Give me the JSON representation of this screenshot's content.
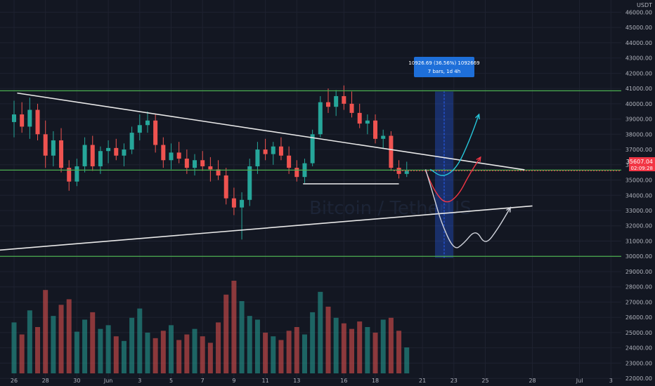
{
  "chart_data": {
    "type": "candlestick",
    "currency": "USDT",
    "watermark_pair": "Bitcoin / TetherUS",
    "ylim": [
      21500,
      46800
    ],
    "y_ticks": [
      22000,
      23000,
      24000,
      25000,
      26000,
      27000,
      28000,
      29000,
      30000,
      31000,
      32000,
      33000,
      34000,
      35000,
      36000,
      37000,
      38000,
      39000,
      40000,
      41000,
      42000,
      43000,
      44000,
      45000,
      46000
    ],
    "x_ticks": [
      {
        "label": "26",
        "day": 0
      },
      {
        "label": "28",
        "day": 2
      },
      {
        "label": "30",
        "day": 4
      },
      {
        "label": "Jun",
        "day": 6
      },
      {
        "label": "3",
        "day": 8
      },
      {
        "label": "5",
        "day": 10
      },
      {
        "label": "7",
        "day": 12
      },
      {
        "label": "9",
        "day": 14
      },
      {
        "label": "11",
        "day": 16
      },
      {
        "label": "13",
        "day": 18
      },
      {
        "label": "16",
        "day": 21
      },
      {
        "label": "18",
        "day": 23
      },
      {
        "label": "21",
        "day": 26
      },
      {
        "label": "23",
        "day": 28
      },
      {
        "label": "25",
        "day": 30
      },
      {
        "label": "28",
        "day": 33
      },
      {
        "label": "Jul",
        "day": 36
      },
      {
        "label": "3",
        "day": 38
      }
    ],
    "current_price": {
      "value": 35607.04,
      "label": "35607.04",
      "countdown": "02:09:28"
    },
    "measure_tool": {
      "line1": "10926.69 (36.56%) 1092669",
      "line2": "7 bars, 1d 4h",
      "from_price": 29900,
      "to_price": 40800
    },
    "horizontal_levels": [
      40850,
      35650,
      30000
    ],
    "support_segment": {
      "price": 34750,
      "day_from": 18.4,
      "day_to": 24.5
    },
    "trendlines": [
      {
        "name": "descending-resistance",
        "from": {
          "day": 0.2,
          "price": 40700
        },
        "to": {
          "day": 32.5,
          "price": 35670
        }
      },
      {
        "name": "ascending-support",
        "from": {
          "day": -1,
          "price": 30400
        },
        "to": {
          "day": 33,
          "price": 33300
        }
      }
    ],
    "scenario_paths": [
      {
        "name": "cyan",
        "points": [
          [
            26.5,
            35700
          ],
          [
            27.3,
            35150
          ],
          [
            28.2,
            35800
          ],
          [
            29,
            37600
          ],
          [
            29.6,
            39300
          ]
        ]
      },
      {
        "name": "red",
        "points": [
          [
            26.2,
            35600
          ],
          [
            26.8,
            34200
          ],
          [
            27.5,
            33400
          ],
          [
            28.3,
            34000
          ],
          [
            29,
            35400
          ],
          [
            29.7,
            36500
          ]
        ]
      },
      {
        "name": "white",
        "points": [
          [
            26.2,
            35700
          ],
          [
            26.7,
            34000
          ],
          [
            27.2,
            32200
          ],
          [
            28,
            30400
          ],
          [
            28.6,
            30800
          ],
          [
            29.4,
            31800
          ],
          [
            30,
            30700
          ],
          [
            30.8,
            31800
          ],
          [
            31.6,
            33200
          ]
        ]
      }
    ],
    "ohlc": [
      {
        "day": 0,
        "o": 38800,
        "h": 40200,
        "l": 37800,
        "c": 39300
      },
      {
        "day": 0.5,
        "o": 39300,
        "h": 40100,
        "l": 38100,
        "c": 38500
      },
      {
        "day": 1,
        "o": 38500,
        "h": 40400,
        "l": 37700,
        "c": 39600
      },
      {
        "day": 1.5,
        "o": 39600,
        "h": 40000,
        "l": 37600,
        "c": 38000
      },
      {
        "day": 2,
        "o": 38000,
        "h": 38900,
        "l": 35800,
        "c": 36600
      },
      {
        "day": 2.5,
        "o": 36600,
        "h": 38200,
        "l": 35900,
        "c": 37600
      },
      {
        "day": 3,
        "o": 37600,
        "h": 38400,
        "l": 35500,
        "c": 35800
      },
      {
        "day": 3.5,
        "o": 35800,
        "h": 36300,
        "l": 34300,
        "c": 34900
      },
      {
        "day": 4,
        "o": 34900,
        "h": 36400,
        "l": 34600,
        "c": 35900
      },
      {
        "day": 4.5,
        "o": 35900,
        "h": 37800,
        "l": 35500,
        "c": 37300
      },
      {
        "day": 5,
        "o": 37300,
        "h": 37900,
        "l": 35600,
        "c": 35900
      },
      {
        "day": 5.5,
        "o": 35900,
        "h": 37200,
        "l": 35400,
        "c": 36900
      },
      {
        "day": 6,
        "o": 36900,
        "h": 37600,
        "l": 36100,
        "c": 37100
      },
      {
        "day": 6.5,
        "o": 37100,
        "h": 37700,
        "l": 36300,
        "c": 36600
      },
      {
        "day": 7,
        "o": 36600,
        "h": 37400,
        "l": 35900,
        "c": 37000
      },
      {
        "day": 7.5,
        "o": 37000,
        "h": 38500,
        "l": 36700,
        "c": 38100
      },
      {
        "day": 8,
        "o": 38100,
        "h": 39300,
        "l": 37600,
        "c": 38600
      },
      {
        "day": 8.5,
        "o": 38600,
        "h": 39500,
        "l": 38100,
        "c": 38900
      },
      {
        "day": 9,
        "o": 38900,
        "h": 39300,
        "l": 36800,
        "c": 37300
      },
      {
        "day": 9.5,
        "o": 37300,
        "h": 37800,
        "l": 35800,
        "c": 36300
      },
      {
        "day": 10,
        "o": 36300,
        "h": 37400,
        "l": 35700,
        "c": 36800
      },
      {
        "day": 10.5,
        "o": 36800,
        "h": 37500,
        "l": 36100,
        "c": 36400
      },
      {
        "day": 11,
        "o": 36400,
        "h": 37000,
        "l": 35400,
        "c": 35800
      },
      {
        "day": 11.5,
        "o": 35800,
        "h": 36700,
        "l": 35300,
        "c": 36300
      },
      {
        "day": 12,
        "o": 36300,
        "h": 36900,
        "l": 35600,
        "c": 35900
      },
      {
        "day": 12.5,
        "o": 35900,
        "h": 36500,
        "l": 34900,
        "c": 35700
      },
      {
        "day": 13,
        "o": 35700,
        "h": 36300,
        "l": 35000,
        "c": 35300
      },
      {
        "day": 13.5,
        "o": 35300,
        "h": 35800,
        "l": 33400,
        "c": 33800
      },
      {
        "day": 14,
        "o": 33800,
        "h": 34500,
        "l": 32700,
        "c": 33200
      },
      {
        "day": 14.5,
        "o": 33200,
        "h": 34200,
        "l": 31100,
        "c": 33700
      },
      {
        "day": 15,
        "o": 33700,
        "h": 36400,
        "l": 33300,
        "c": 35900
      },
      {
        "day": 15.5,
        "o": 35900,
        "h": 37500,
        "l": 35400,
        "c": 37000
      },
      {
        "day": 16,
        "o": 37000,
        "h": 37700,
        "l": 36300,
        "c": 36700
      },
      {
        "day": 16.5,
        "o": 36700,
        "h": 37500,
        "l": 36000,
        "c": 37200
      },
      {
        "day": 17,
        "o": 37200,
        "h": 37800,
        "l": 36300,
        "c": 36600
      },
      {
        "day": 17.5,
        "o": 36600,
        "h": 37200,
        "l": 35400,
        "c": 35800
      },
      {
        "day": 18,
        "o": 35800,
        "h": 36300,
        "l": 34900,
        "c": 35200
      },
      {
        "day": 18.5,
        "o": 35200,
        "h": 36400,
        "l": 34800,
        "c": 36100
      },
      {
        "day": 19,
        "o": 36100,
        "h": 38300,
        "l": 35900,
        "c": 38000
      },
      {
        "day": 19.5,
        "o": 38000,
        "h": 40500,
        "l": 37800,
        "c": 40100
      },
      {
        "day": 20,
        "o": 40100,
        "h": 41000,
        "l": 39400,
        "c": 39800
      },
      {
        "day": 20.5,
        "o": 39800,
        "h": 40900,
        "l": 39200,
        "c": 40500
      },
      {
        "day": 21,
        "o": 40500,
        "h": 41200,
        "l": 39600,
        "c": 40000
      },
      {
        "day": 21.5,
        "o": 40000,
        "h": 40800,
        "l": 39100,
        "c": 39400
      },
      {
        "day": 22,
        "o": 39400,
        "h": 40000,
        "l": 38400,
        "c": 38700
      },
      {
        "day": 22.5,
        "o": 38700,
        "h": 39300,
        "l": 38000,
        "c": 38900
      },
      {
        "day": 23,
        "o": 38900,
        "h": 39300,
        "l": 37400,
        "c": 37700
      },
      {
        "day": 23.5,
        "o": 37700,
        "h": 38300,
        "l": 37100,
        "c": 37900
      },
      {
        "day": 24,
        "o": 37900,
        "h": 38200,
        "l": 35600,
        "c": 35800
      },
      {
        "day": 24.5,
        "o": 35800,
        "h": 36300,
        "l": 35100,
        "c": 35400
      },
      {
        "day": 25,
        "o": 35400,
        "h": 36200,
        "l": 35200,
        "c": 35600
      }
    ],
    "volume": {
      "ylim_share": 0.26,
      "values": [
        0.55,
        0.42,
        0.68,
        0.5,
        0.9,
        0.62,
        0.74,
        0.8,
        0.45,
        0.58,
        0.66,
        0.48,
        0.52,
        0.4,
        0.35,
        0.6,
        0.7,
        0.44,
        0.38,
        0.46,
        0.52,
        0.36,
        0.42,
        0.48,
        0.4,
        0.33,
        0.55,
        0.85,
        1.0,
        0.78,
        0.62,
        0.58,
        0.44,
        0.4,
        0.36,
        0.46,
        0.5,
        0.42,
        0.66,
        0.88,
        0.72,
        0.6,
        0.54,
        0.48,
        0.56,
        0.5,
        0.44,
        0.58,
        0.6,
        0.46,
        0.28
      ]
    }
  }
}
